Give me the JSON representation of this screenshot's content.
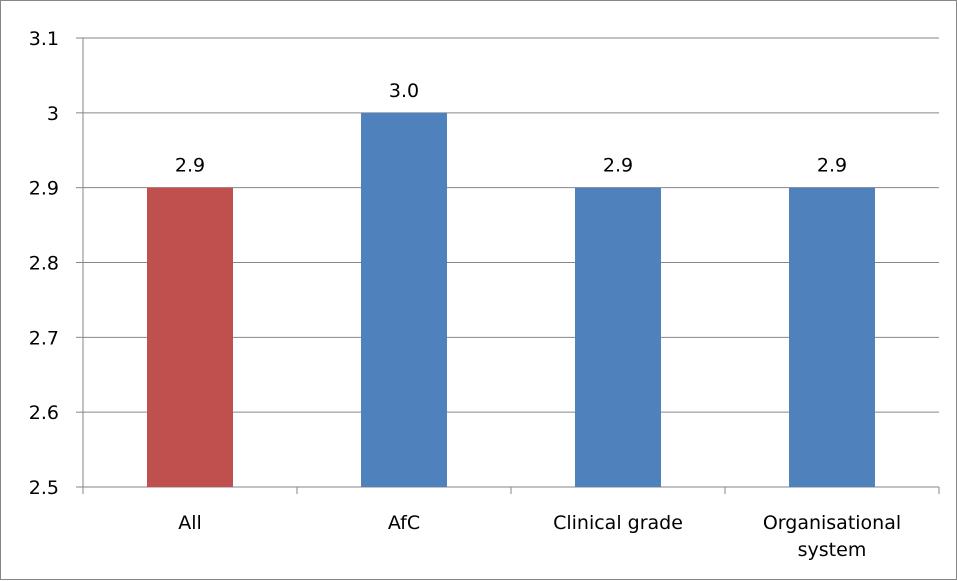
{
  "chart_data": {
    "type": "bar",
    "categories": [
      "All",
      "AfC",
      "Clinical grade",
      "Organisational system"
    ],
    "category_lines": [
      [
        "All"
      ],
      [
        "AfC"
      ],
      [
        "Clinical grade"
      ],
      [
        "Organisational",
        "system"
      ]
    ],
    "values": [
      2.9,
      3.0,
      2.9,
      2.9
    ],
    "data_labels": [
      "2.9",
      "3.0",
      "2.9",
      "2.9"
    ],
    "bar_colors": [
      "#C0504D",
      "#4F81BD",
      "#4F81BD",
      "#4F81BD"
    ],
    "ylim": [
      2.5,
      3.1
    ],
    "yticks": [
      2.5,
      2.6,
      2.7,
      2.8,
      2.9,
      3.0,
      3.1
    ],
    "ytick_labels": [
      "2.5",
      "2.6",
      "2.7",
      "2.8",
      "2.9",
      "3",
      "3.1"
    ],
    "grid": true,
    "legend": "none",
    "title": "",
    "xlabel": "",
    "ylabel": ""
  }
}
